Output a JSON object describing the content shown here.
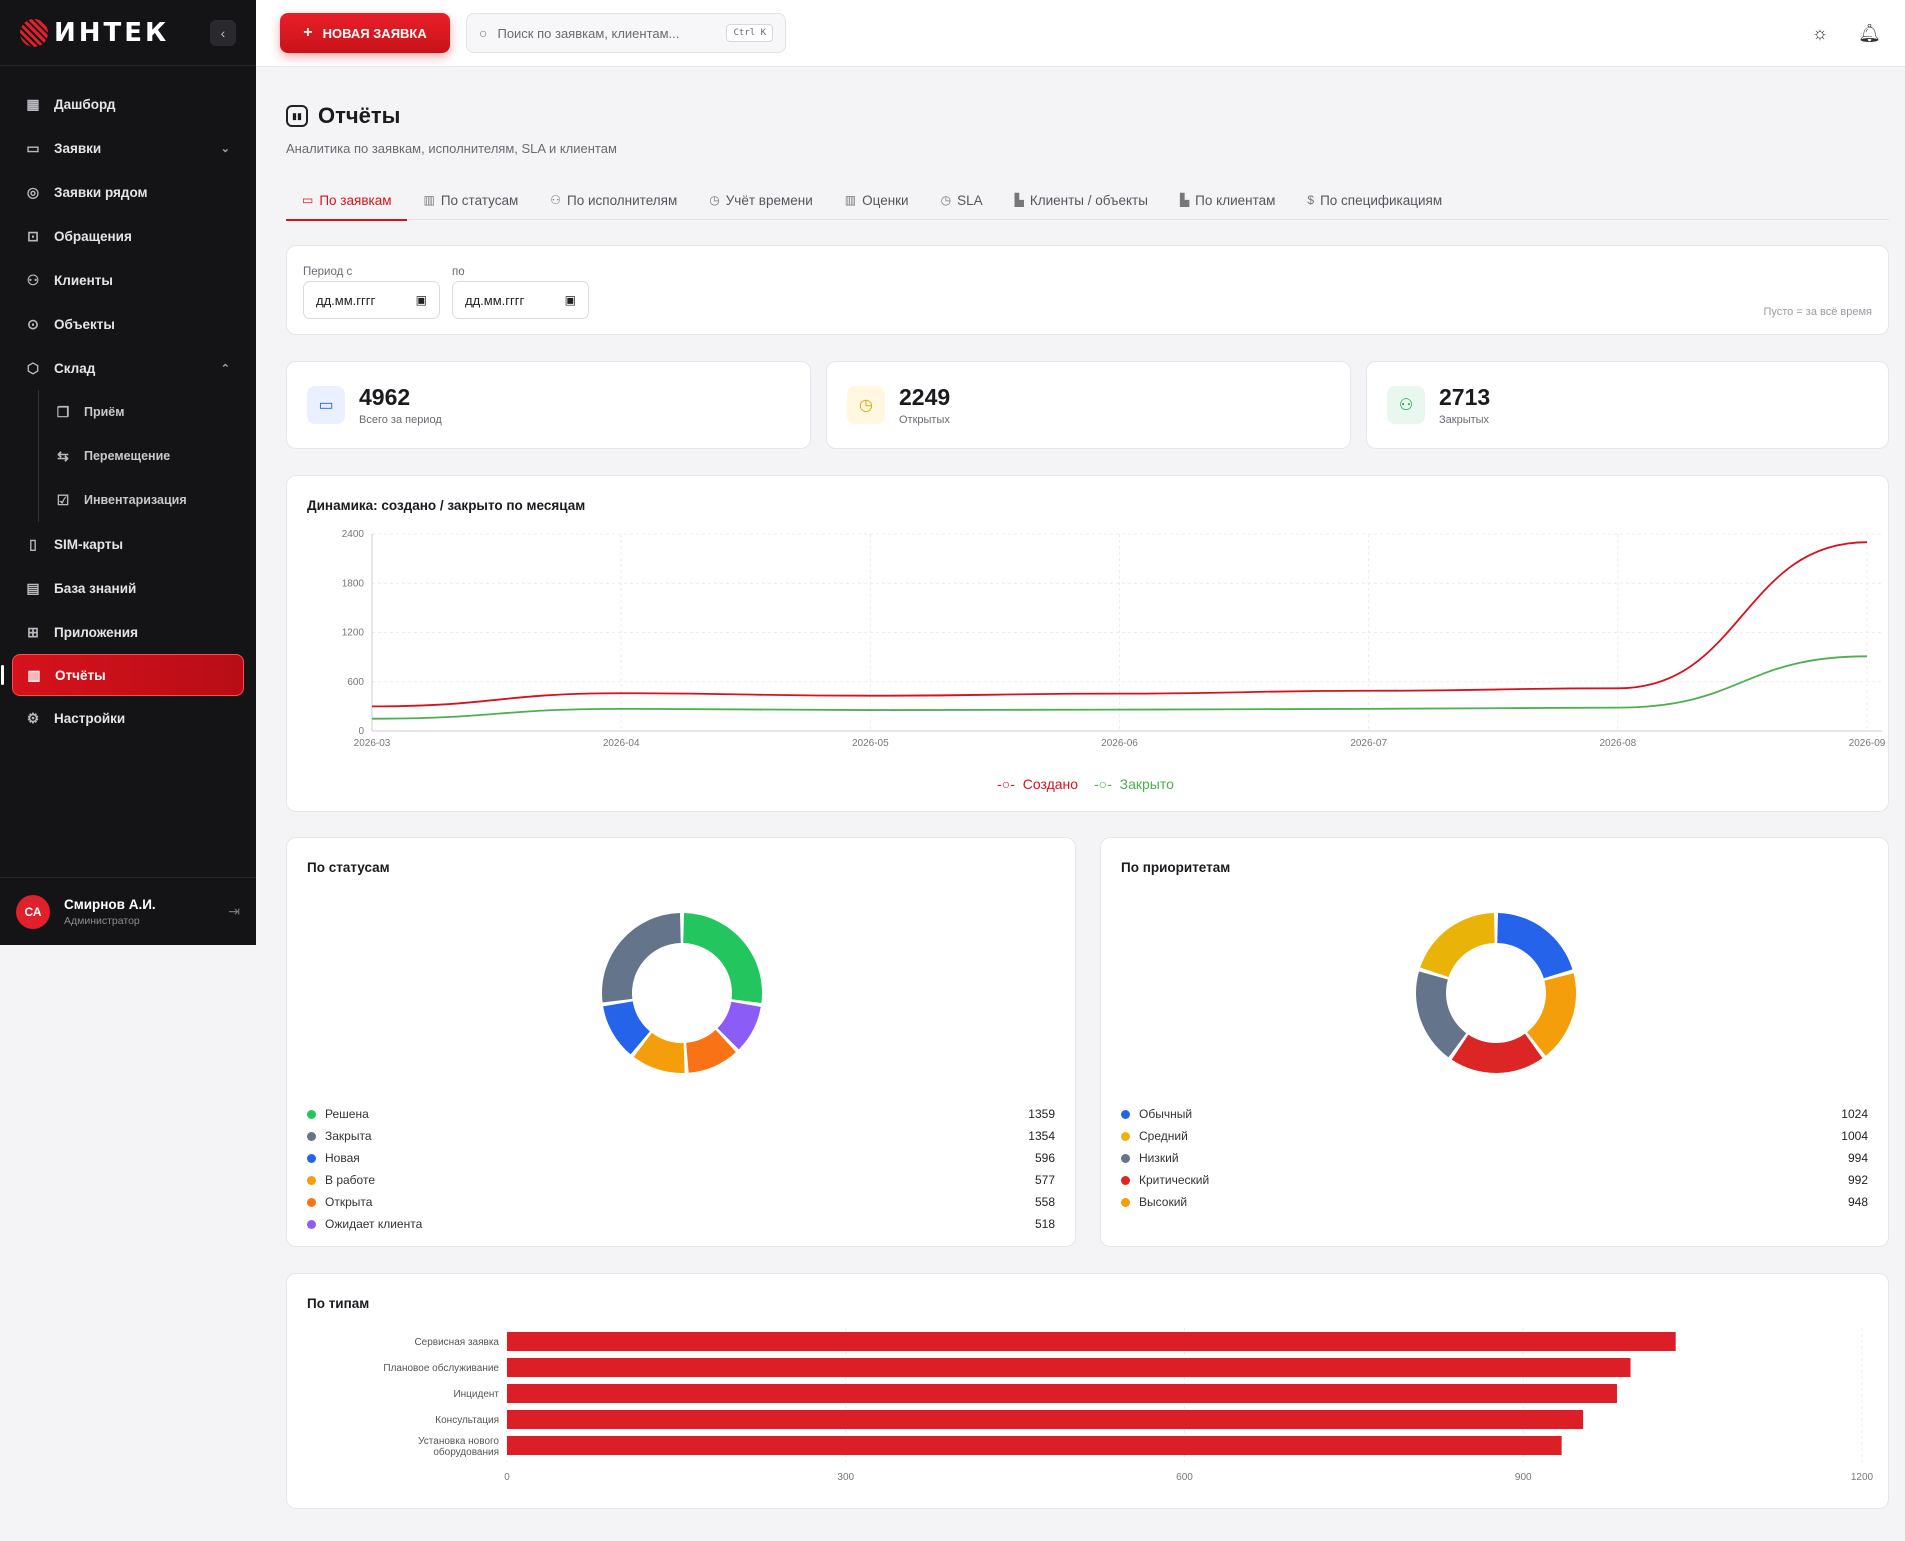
{
  "app": {
    "logo": "ИНТЕК",
    "collapse_icon": "chevron-left-icon"
  },
  "sidebar": {
    "items": [
      {
        "label": "Дашборд",
        "icon": "grid-icon"
      },
      {
        "label": "Заявки",
        "icon": "ticket-icon"
      },
      {
        "label": "Заявки рядом",
        "icon": "target-icon"
      },
      {
        "label": "Обращения",
        "icon": "inbox-icon"
      },
      {
        "label": "Клиенты",
        "icon": "users-icon"
      },
      {
        "label": "Объекты",
        "icon": "pin-icon"
      },
      {
        "label": "Склад",
        "icon": "box-icon"
      }
    ],
    "sub_items": [
      {
        "label": "Приём"
      },
      {
        "label": "Перемещение"
      },
      {
        "label": "Инвентаризация"
      }
    ],
    "items2": [
      {
        "label": "SIM-карты"
      },
      {
        "label": "База знаний"
      },
      {
        "label": "Приложения"
      },
      {
        "label": "Отчёты"
      },
      {
        "label": "Настройки"
      }
    ],
    "user": {
      "initials": "СА",
      "name": "Смирнов А.И.",
      "role": "Администратор"
    }
  },
  "header": {
    "new_button": "НОВАЯ ЗАЯВКА",
    "search_placeholder": "Поиск по заявкам, клиентам...",
    "search_shortcut": "Ctrl K"
  },
  "page": {
    "title": "Отчёты",
    "subtitle": "Аналитика по заявкам, исполнителям, SLA и клиентам",
    "tabs": [
      "По заявкам",
      "По статусам",
      "По исполнителям",
      "Учёт времени",
      "Оценки",
      "SLA",
      "Клиенты / объекты",
      "По клиентам",
      "По спецификациям"
    ],
    "period": {
      "from_label": "Период с",
      "to_label": "по",
      "from_value": "дд.мм.гггг",
      "to_value": "дд.мм.гггг",
      "hint": "Пусто = за всё время"
    },
    "stats": [
      {
        "value": "4962",
        "label": "Всего за период",
        "color": "#2563eb"
      },
      {
        "value": "2249",
        "label": "Открытых",
        "color": "#eab308"
      },
      {
        "value": "2713",
        "label": "Закрытых",
        "color": "#16a34a"
      }
    ]
  },
  "chart_data": [
    {
      "type": "line",
      "title": "Динамика: создано / закрыто по месяцам",
      "x": [
        "2026-03",
        "2026-04",
        "2026-05",
        "2026-06",
        "2026-07",
        "2026-08",
        "2026-09"
      ],
      "ylim": [
        0,
        2400
      ],
      "yticks": [
        0,
        600,
        1200,
        1800,
        2400
      ],
      "series": [
        {
          "name": "Создано",
          "color": "#d6121c",
          "values": [
            300,
            460,
            430,
            455,
            490,
            520,
            2300
          ]
        },
        {
          "name": "Закрыто",
          "color": "#4caf50",
          "values": [
            150,
            270,
            255,
            260,
            270,
            285,
            910
          ]
        }
      ],
      "legend": "bottom"
    },
    {
      "type": "pie",
      "title": "По статусам",
      "labels": [
        "Решена",
        "Закрыта",
        "Новая",
        "В работе",
        "Открыта",
        "Ожидает клиента"
      ],
      "values": [
        1359,
        1354,
        596,
        577,
        558,
        518
      ],
      "colors": [
        "#22c55e",
        "#64748b",
        "#2563eb",
        "#f59e0b",
        "#f97316",
        "#8b5cf6"
      ],
      "order": [
        0,
        5,
        4,
        3,
        2,
        1
      ]
    },
    {
      "type": "pie",
      "title": "По приоритетам",
      "labels": [
        "Обычный",
        "Средний",
        "Низкий",
        "Критический",
        "Высокий"
      ],
      "values": [
        1024,
        1004,
        994,
        992,
        948
      ],
      "colors": [
        "#2563eb",
        "#eab308",
        "#64748b",
        "#dc2626",
        "#f59e0b"
      ],
      "order": [
        0,
        4,
        3,
        2,
        1
      ]
    },
    {
      "type": "bar",
      "title": "По типам",
      "categories": [
        "Сервисная заявка",
        "Плановое обслуживание",
        "Инцидент",
        "Консультация",
        "Установка нового оборудования"
      ],
      "values": [
        1035,
        995,
        983,
        953,
        934
      ],
      "xlim": [
        0,
        1200
      ],
      "xticks": [
        0,
        300,
        600,
        900,
        1200
      ],
      "color": "#dc1f26"
    }
  ]
}
